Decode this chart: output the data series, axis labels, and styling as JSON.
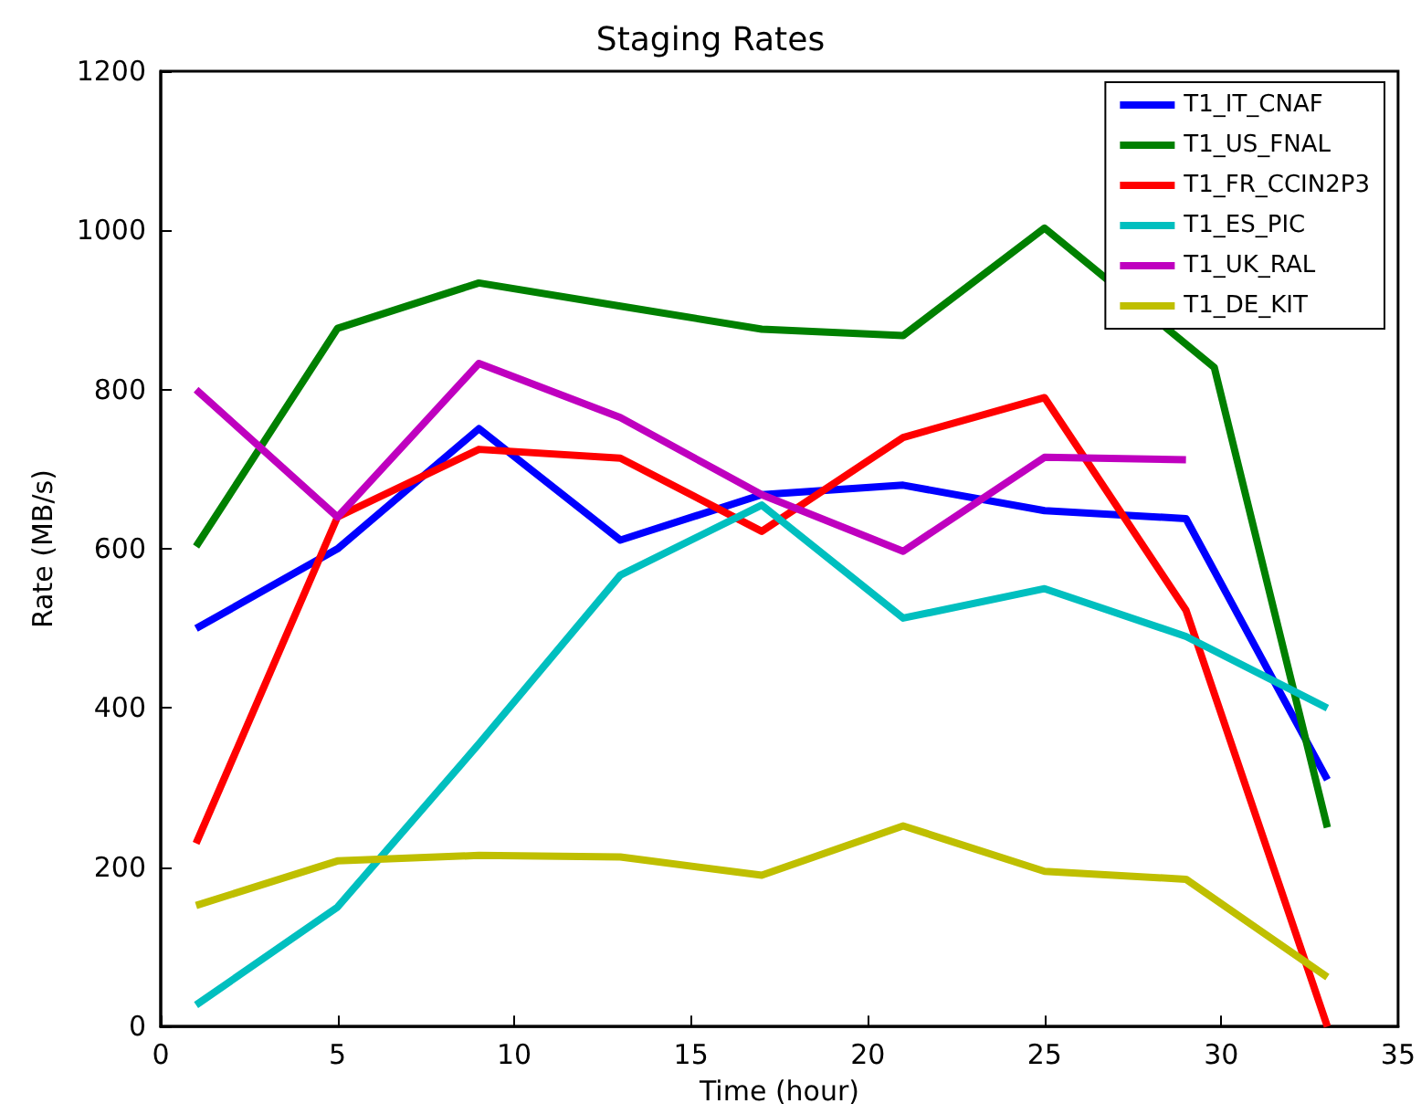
{
  "chart_data": {
    "type": "line",
    "title": "Staging Rates",
    "xlabel": "Time (hour)",
    "ylabel": "Rate (MB/s)",
    "x": [
      1,
      5,
      9,
      13,
      17,
      21,
      25,
      29,
      33
    ],
    "series": [
      {
        "name": "T1_IT_CNAF",
        "color": "#0000ff",
        "values": [
          500,
          600,
          751,
          611,
          668,
          680,
          648,
          638,
          310
        ]
      },
      {
        "name": "T1_US_FNAL",
        "color": "#008000",
        "x": [
          1,
          5,
          9,
          13,
          17,
          21,
          25,
          29.8,
          33
        ],
        "values": [
          603,
          877,
          934,
          905,
          876,
          868,
          1003,
          828,
          250
        ]
      },
      {
        "name": "T1_FR_CCIN2P3",
        "color": "#ff0000",
        "values": [
          230,
          640,
          725,
          714,
          622,
          740,
          790,
          523,
          0
        ]
      },
      {
        "name": "T1_ES_PIC",
        "color": "#00bfbf",
        "values": [
          27,
          150,
          355,
          567,
          655,
          513,
          550,
          490,
          400
        ]
      },
      {
        "name": "T1_UK_RAL",
        "color": "#bf00bf",
        "values": [
          800,
          640,
          833,
          765,
          668,
          597,
          715,
          712,
          null
        ]
      },
      {
        "name": "T1_DE_KIT",
        "color": "#bfbf00",
        "values": [
          152,
          208,
          215,
          213,
          190,
          252,
          195,
          185,
          62
        ]
      }
    ],
    "xlim": [
      0,
      35
    ],
    "xticks": [
      0,
      5,
      10,
      15,
      20,
      25,
      30,
      35
    ],
    "ylim": [
      0,
      1200
    ],
    "yticks": [
      0,
      200,
      400,
      600,
      800,
      1000,
      1200
    ],
    "grid": false,
    "legend": "top right",
    "marker": "none",
    "line_style": "solid"
  }
}
